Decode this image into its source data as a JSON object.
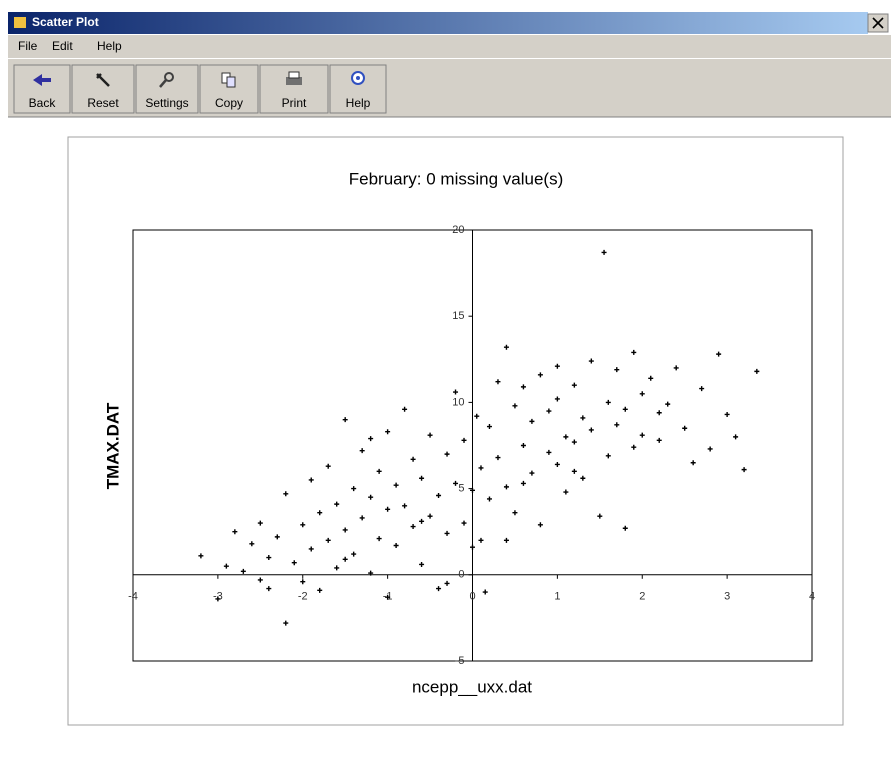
{
  "window": {
    "title": "Scatter Plot"
  },
  "menu": [
    "File",
    "Edit",
    "Help"
  ],
  "toolbar": [
    "Back",
    "Reset",
    "Settings",
    "Copy",
    "Print",
    "Help"
  ],
  "chart_data": {
    "type": "scatter",
    "title": "February: 0 missing value(s)",
    "x_label": "ncepp__uxx.dat",
    "y_label": "TMAX.DAT",
    "color": "#000000",
    "xlim": [
      -4,
      4
    ],
    "ylim": [
      -5,
      20
    ],
    "xticks": [
      -4,
      -3,
      -2,
      -1,
      0,
      1,
      2,
      3,
      4
    ],
    "yticks": [
      -5,
      0,
      5,
      10,
      15,
      20
    ],
    "grid": false,
    "x": [
      -3.2,
      -3.0,
      -2.9,
      -2.8,
      -2.7,
      -2.6,
      -2.5,
      -2.5,
      -2.4,
      -2.3,
      -2.2,
      -2.2,
      -2.1,
      -2.0,
      -2.0,
      -1.9,
      -1.9,
      -1.8,
      -1.8,
      -1.7,
      -1.7,
      -1.6,
      -1.6,
      -1.5,
      -1.5,
      -1.4,
      -1.4,
      -1.3,
      -1.3,
      -1.2,
      -1.2,
      -1.1,
      -1.1,
      -1.0,
      -1.0,
      -1.0,
      -0.9,
      -0.9,
      -0.8,
      -0.8,
      -0.7,
      -0.7,
      -0.6,
      -0.6,
      -0.5,
      -0.5,
      -0.4,
      -0.4,
      -0.3,
      -0.3,
      -0.2,
      -0.2,
      -0.1,
      -0.1,
      0.0,
      0.0,
      0.05,
      0.1,
      0.1,
      0.2,
      0.2,
      0.3,
      0.3,
      0.4,
      0.4,
      0.5,
      0.5,
      0.6,
      0.6,
      0.7,
      0.7,
      0.8,
      0.8,
      0.9,
      0.9,
      1.0,
      1.0,
      1.1,
      1.1,
      1.2,
      1.2,
      1.3,
      1.3,
      1.4,
      1.4,
      1.5,
      1.55,
      1.6,
      1.6,
      1.7,
      1.7,
      1.8,
      1.8,
      1.9,
      1.9,
      2.0,
      2.0,
      2.1,
      2.2,
      2.3,
      2.4,
      2.5,
      2.6,
      2.7,
      2.8,
      2.9,
      3.0,
      3.1,
      3.2,
      3.35,
      -1.5,
      -0.6,
      0.4,
      0.6,
      1.2,
      -1.2,
      -0.3,
      0.15,
      -2.4,
      2.2,
      1.0
    ],
    "values": [
      1.1,
      -1.4,
      0.5,
      2.5,
      0.2,
      1.8,
      -0.3,
      3.0,
      1.0,
      2.2,
      -2.8,
      4.7,
      0.7,
      -0.4,
      2.9,
      5.5,
      1.5,
      -0.9,
      3.6,
      2.0,
      6.3,
      0.4,
      4.1,
      9.0,
      2.6,
      1.2,
      5.0,
      3.3,
      7.2,
      0.1,
      4.5,
      2.1,
      6.0,
      8.3,
      3.8,
      -1.3,
      5.2,
      1.7,
      9.6,
      4.0,
      2.8,
      6.7,
      0.6,
      5.6,
      3.4,
      8.1,
      4.6,
      -0.8,
      7.0,
      2.4,
      5.3,
      10.6,
      3.0,
      7.8,
      4.9,
      1.6,
      9.2,
      6.2,
      2.0,
      8.6,
      4.4,
      11.2,
      6.8,
      13.2,
      5.1,
      9.8,
      3.6,
      7.5,
      10.9,
      5.9,
      8.9,
      11.6,
      2.9,
      7.1,
      9.5,
      6.4,
      10.2,
      8.0,
      4.8,
      11.0,
      7.7,
      9.1,
      5.6,
      12.4,
      8.4,
      3.4,
      18.7,
      10.0,
      6.9,
      11.9,
      8.7,
      9.6,
      2.7,
      12.9,
      7.4,
      10.5,
      8.1,
      11.4,
      7.8,
      9.9,
      12.0,
      8.5,
      6.5,
      10.8,
      7.3,
      12.8,
      9.3,
      8.0,
      6.1,
      11.8,
      0.9,
      3.1,
      2.0,
      5.3,
      6.0,
      7.9,
      -0.5,
      -1.0,
      -0.8,
      9.4,
      12.1
    ]
  }
}
